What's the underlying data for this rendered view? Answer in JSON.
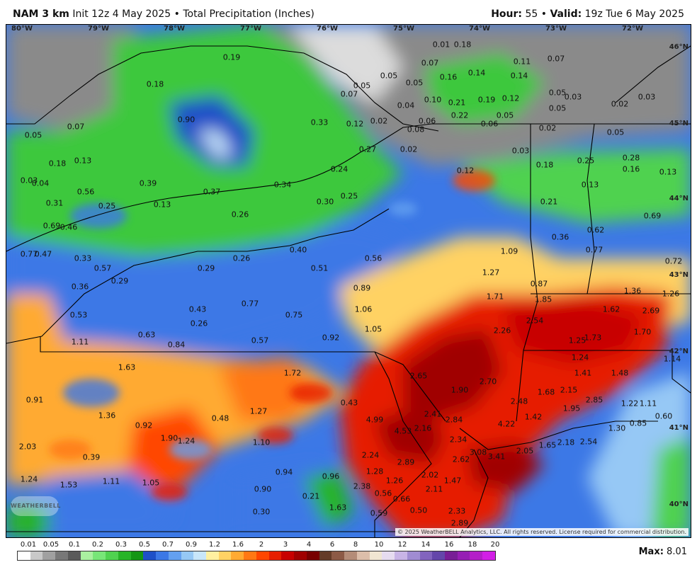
{
  "header": {
    "model": "NAM 3 km",
    "init": "Init 12z 4 May 2025",
    "product": "Total Precipitation (Inches)",
    "hour_label": "Hour:",
    "hour": "55",
    "valid_label": "Valid:",
    "valid": "19z Tue 6 May 2025",
    "sep": "•"
  },
  "longitudes": [
    "80°W",
    "79°W",
    "78°W",
    "77°W",
    "76°W",
    "75°W",
    "74°W",
    "73°W",
    "72°W"
  ],
  "latitudes": [
    "46°N",
    "45°N",
    "44°N",
    "43°N",
    "42°N",
    "41°N",
    "40°N"
  ],
  "logo": "WEATHERBELL",
  "copyright": "© 2025 WeatherBELL Analytics, LLC. All rights reserved. License required for commercial distribution.",
  "legend": {
    "labels": [
      "0.01",
      "0.05",
      "0.1",
      "0.2",
      "0.3",
      "0.5",
      "0.7",
      "0.9",
      "1.2",
      "1.6",
      "2",
      "3",
      "4",
      "6",
      "8",
      "10",
      "12",
      "14",
      "16",
      "18",
      "20"
    ],
    "colors": [
      "#ffffff",
      "#c8c8c8",
      "#a0a0a0",
      "#787878",
      "#5a5a5a",
      "#aaf0a0",
      "#78e678",
      "#50d250",
      "#28b428",
      "#149614",
      "#1e50c8",
      "#3c78e6",
      "#64a0f0",
      "#96c8f5",
      "#c8e6fa",
      "#fff0a0",
      "#ffd264",
      "#ffaa32",
      "#ff7814",
      "#ff4600",
      "#e61e00",
      "#c80000",
      "#a00000",
      "#780000",
      "#643c28",
      "#8c5a46",
      "#b48c78",
      "#dcbeaa",
      "#f0e6d2",
      "#e6dcf0",
      "#c8b4e6",
      "#a08cd2",
      "#8264be",
      "#6446aa",
      "#781e96",
      "#961eb4",
      "#b41ec8",
      "#d21ee6"
    ],
    "max_label": "Max:",
    "max_value": "8.01"
  },
  "values": [
    {
      "v": "0.19"
    },
    {
      "v": "0.18"
    },
    {
      "v": "0.90"
    },
    {
      "v": "0.07"
    },
    {
      "v": "0.05"
    },
    {
      "v": "0.18"
    },
    {
      "v": "0.13"
    },
    {
      "v": "0.03"
    },
    {
      "v": "0.04"
    },
    {
      "v": "0.56"
    },
    {
      "v": "0.39"
    },
    {
      "v": "0.31"
    },
    {
      "v": "0.25"
    },
    {
      "v": "0.13"
    },
    {
      "v": "0.37"
    },
    {
      "v": "0.34"
    },
    {
      "v": "0.26"
    },
    {
      "v": "0.69"
    },
    {
      "v": "0.46"
    },
    {
      "v": "0.77"
    },
    {
      "v": "0.47"
    },
    {
      "v": "0.33"
    },
    {
      "v": "0.57"
    },
    {
      "v": "0.29"
    },
    {
      "v": "0.36"
    },
    {
      "v": "0.29"
    },
    {
      "v": "0.26"
    },
    {
      "v": "0.40"
    },
    {
      "v": "0.51"
    },
    {
      "v": "0.56"
    },
    {
      "v": "0.33"
    },
    {
      "v": "0.12"
    },
    {
      "v": "0.02"
    },
    {
      "v": "0.27"
    },
    {
      "v": "0.24"
    },
    {
      "v": "0.30"
    },
    {
      "v": "0.25"
    },
    {
      "v": "0.07"
    },
    {
      "v": "0.05"
    },
    {
      "v": "0.05"
    },
    {
      "v": "0.05"
    },
    {
      "v": "0.04"
    },
    {
      "v": "0.08"
    },
    {
      "v": "0.06"
    },
    {
      "v": "0.10"
    },
    {
      "v": "0.21"
    },
    {
      "v": "0.22"
    },
    {
      "v": "0.19"
    },
    {
      "v": "0.12"
    },
    {
      "v": "0.05"
    },
    {
      "v": "0.06"
    },
    {
      "v": "0.02"
    },
    {
      "v": "0.01"
    },
    {
      "v": "0.18"
    },
    {
      "v": "0.07"
    },
    {
      "v": "0.16"
    },
    {
      "v": "0.14"
    },
    {
      "v": "0.11"
    },
    {
      "v": "0.14"
    },
    {
      "v": "0.07"
    },
    {
      "v": "0.05"
    },
    {
      "v": "0.03"
    },
    {
      "v": "0.05"
    },
    {
      "v": "0.02"
    },
    {
      "v": "0.03"
    },
    {
      "v": "0.05"
    },
    {
      "v": "0.02"
    },
    {
      "v": "0.03"
    },
    {
      "v": "0.12"
    },
    {
      "v": "0.18"
    },
    {
      "v": "0.25"
    },
    {
      "v": "0.28"
    },
    {
      "v": "0.16"
    },
    {
      "v": "0.13"
    },
    {
      "v": "0.13"
    },
    {
      "v": "0.21"
    },
    {
      "v": "0.69"
    },
    {
      "v": "0.36"
    },
    {
      "v": "0.62"
    },
    {
      "v": "0.77"
    },
    {
      "v": "1.09"
    },
    {
      "v": "0.72"
    },
    {
      "v": "1.27"
    },
    {
      "v": "0.87"
    },
    {
      "v": "1.71"
    },
    {
      "v": "1.36"
    },
    {
      "v": "1.26"
    },
    {
      "v": "1.85"
    },
    {
      "v": "1.62"
    },
    {
      "v": "2.69"
    },
    {
      "v": "2.54"
    },
    {
      "v": "2.26"
    },
    {
      "v": "1.70"
    },
    {
      "v": "1.25"
    },
    {
      "v": "1.73"
    },
    {
      "v": "1.14"
    },
    {
      "v": "1.24"
    },
    {
      "v": "1.41"
    },
    {
      "v": "1.48"
    },
    {
      "v": "0.89"
    },
    {
      "v": "1.06"
    },
    {
      "v": "1.05"
    },
    {
      "v": "0.92"
    },
    {
      "v": "0.77"
    },
    {
      "v": "0.75"
    },
    {
      "v": "0.43"
    },
    {
      "v": "0.26"
    },
    {
      "v": "0.53"
    },
    {
      "v": "0.63"
    },
    {
      "v": "0.84"
    },
    {
      "v": "0.57"
    },
    {
      "v": "1.11"
    },
    {
      "v": "1.63"
    },
    {
      "v": "1.72"
    },
    {
      "v": "2.65"
    },
    {
      "v": "1.90"
    },
    {
      "v": "2.70"
    },
    {
      "v": "2.48"
    },
    {
      "v": "1.68"
    },
    {
      "v": "2.15"
    },
    {
      "v": "2.85"
    },
    {
      "v": "1.22"
    },
    {
      "v": "1.11"
    },
    {
      "v": "0.91"
    },
    {
      "v": "1.36"
    },
    {
      "v": "0.92"
    },
    {
      "v": "0.48"
    },
    {
      "v": "1.27"
    },
    {
      "v": "0.43"
    },
    {
      "v": "4.99"
    },
    {
      "v": "2.41"
    },
    {
      "v": "2.84"
    },
    {
      "v": "4.22"
    },
    {
      "v": "1.42"
    },
    {
      "v": "1.95"
    },
    {
      "v": "0.60"
    },
    {
      "v": "4.53"
    },
    {
      "v": "2.16"
    },
    {
      "v": "1.30"
    },
    {
      "v": "0.85"
    },
    {
      "v": "2.03"
    },
    {
      "v": "1.90"
    },
    {
      "v": "1.24"
    },
    {
      "v": "1.10"
    },
    {
      "v": "2.34"
    },
    {
      "v": "3.08"
    },
    {
      "v": "3.41"
    },
    {
      "v": "2.05"
    },
    {
      "v": "1.65"
    },
    {
      "v": "2.18"
    },
    {
      "v": "2.54"
    },
    {
      "v": "0.39"
    },
    {
      "v": "2.24"
    },
    {
      "v": "2.89"
    },
    {
      "v": "2.62"
    },
    {
      "v": "1.24"
    },
    {
      "v": "1.53"
    },
    {
      "v": "1.11"
    },
    {
      "v": "1.05"
    },
    {
      "v": "0.94"
    },
    {
      "v": "0.96"
    },
    {
      "v": "1.28"
    },
    {
      "v": "2.02"
    },
    {
      "v": "1.26"
    },
    {
      "v": "1.47"
    },
    {
      "v": "0.90"
    },
    {
      "v": "2.38"
    },
    {
      "v": "2.11"
    },
    {
      "v": "0.21"
    },
    {
      "v": "0.56"
    },
    {
      "v": "0.66"
    },
    {
      "v": "1.63"
    },
    {
      "v": "0.30"
    },
    {
      "v": "0.59"
    },
    {
      "v": "0.50"
    },
    {
      "v": "2.33"
    },
    {
      "v": "2.89"
    }
  ]
}
